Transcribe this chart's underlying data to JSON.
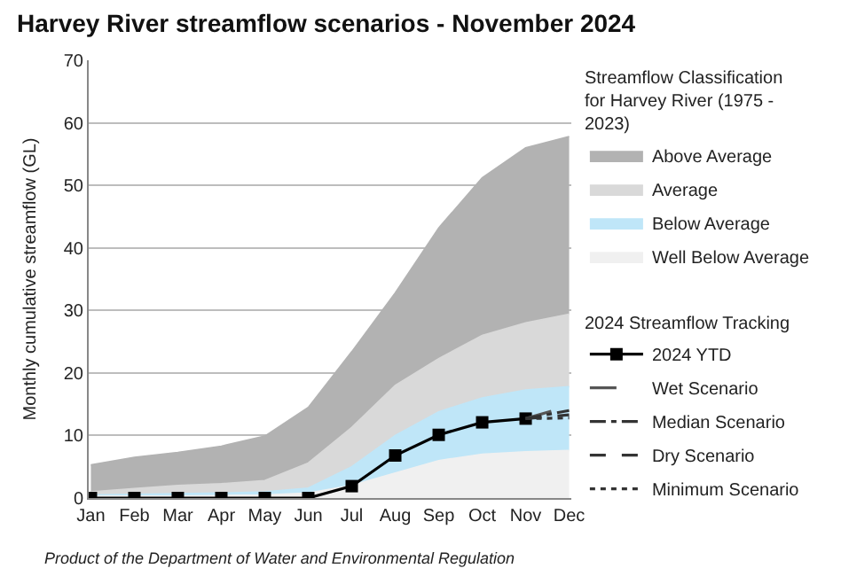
{
  "chart_data": {
    "type": "area",
    "title": "Harvey River streamflow scenarios - November 2024",
    "ylabel": "Monthly cumulative streamflow (GL)",
    "legend_title": "Streamflow Classification for Harvey River (1975 - 2023)",
    "stacked": true,
    "categories": [
      "Jan",
      "Feb",
      "Mar",
      "Apr",
      "May",
      "Jun",
      "Jul",
      "Aug",
      "Sep",
      "Oct",
      "Nov",
      "Dec"
    ],
    "series": [
      {
        "name": "Well Below Average",
        "color": "#f0f0f0",
        "values": [
          0.3,
          0.3,
          0.3,
          0.4,
          0.5,
          0.8,
          2.0,
          4.0,
          6.0,
          7.0,
          7.4,
          7.6
        ]
      },
      {
        "name": "Below Average",
        "color": "#bfe6f8",
        "values": [
          0.2,
          0.3,
          0.4,
          0.4,
          0.5,
          0.8,
          3.0,
          6.0,
          7.8,
          9.0,
          9.9,
          10.2
        ]
      },
      {
        "name": "Average",
        "color": "#d9d9d9",
        "values": [
          0.5,
          0.9,
          1.3,
          1.5,
          1.8,
          4.0,
          6.3,
          8.0,
          8.5,
          10.0,
          10.7,
          11.6
        ]
      },
      {
        "name": "Above Average",
        "color": "#b2b2b2",
        "values": [
          4.3,
          5.0,
          5.3,
          6.0,
          7.1,
          8.9,
          12.1,
          14.8,
          20.9,
          25.2,
          28.0,
          28.4
        ]
      },
      {
        "name": "2024 YTD",
        "type": "line",
        "color": "#000000",
        "marker": "square",
        "line_style": "solid",
        "values": [
          0,
          0,
          0,
          0,
          0,
          0,
          1.9,
          6.8,
          10.1,
          12.1,
          12.7,
          null
        ]
      },
      {
        "name": "Wet Scenario",
        "type": "line",
        "color": "#555555",
        "line_style": "longdash",
        "values": [
          null,
          null,
          null,
          null,
          null,
          null,
          null,
          null,
          null,
          null,
          12.7,
          14.7
        ]
      },
      {
        "name": "Median Scenario",
        "type": "line",
        "color": "#333333",
        "line_style": "dashdot",
        "values": [
          null,
          null,
          null,
          null,
          null,
          null,
          null,
          null,
          null,
          null,
          12.7,
          14.0
        ]
      },
      {
        "name": "Dry Scenario",
        "type": "line",
        "color": "#333333",
        "line_style": "dashed",
        "values": [
          null,
          null,
          null,
          null,
          null,
          null,
          null,
          null,
          null,
          null,
          12.7,
          13.3
        ]
      },
      {
        "name": "Minimum Scenario",
        "type": "line",
        "color": "#333333",
        "line_style": "dotted",
        "values": [
          null,
          null,
          null,
          null,
          null,
          null,
          null,
          null,
          null,
          null,
          12.7,
          12.8
        ]
      }
    ],
    "ylim": [
      0,
      70
    ],
    "yticks": [
      0,
      10,
      20,
      30,
      40,
      50,
      60,
      70
    ],
    "grid": "y",
    "legend": "right",
    "annotations": [
      "2024 Streamflow Tracking",
      "Product of the Department of Water and Environmental Regulation"
    ]
  }
}
